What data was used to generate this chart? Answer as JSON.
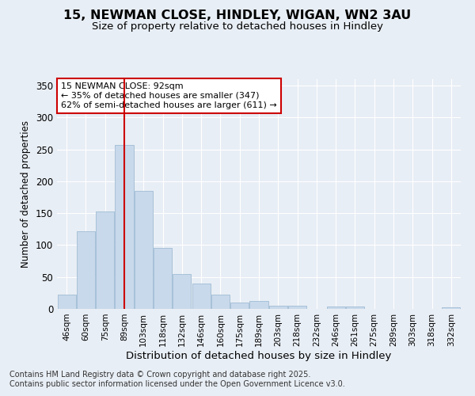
{
  "title_line1": "15, NEWMAN CLOSE, HINDLEY, WIGAN, WN2 3AU",
  "title_line2": "Size of property relative to detached houses in Hindley",
  "xlabel": "Distribution of detached houses by size in Hindley",
  "ylabel": "Number of detached properties",
  "bar_labels": [
    "46sqm",
    "60sqm",
    "75sqm",
    "89sqm",
    "103sqm",
    "118sqm",
    "132sqm",
    "146sqm",
    "160sqm",
    "175sqm",
    "189sqm",
    "203sqm",
    "218sqm",
    "232sqm",
    "246sqm",
    "261sqm",
    "275sqm",
    "289sqm",
    "303sqm",
    "318sqm",
    "332sqm"
  ],
  "bar_values": [
    22,
    122,
    153,
    257,
    185,
    95,
    55,
    40,
    22,
    10,
    12,
    5,
    5,
    0,
    4,
    4,
    0,
    0,
    0,
    0,
    2
  ],
  "bar_color": "#c8d9eb",
  "bar_edge_color": "#a0bcd4",
  "vline_x_index": 3,
  "vline_color": "#cc0000",
  "ylim": [
    0,
    360
  ],
  "yticks": [
    0,
    50,
    100,
    150,
    200,
    250,
    300,
    350
  ],
  "annotation_text": "15 NEWMAN CLOSE: 92sqm\n← 35% of detached houses are smaller (347)\n62% of semi-detached houses are larger (611) →",
  "annotation_box_color": "#cc0000",
  "bg_color": "#e8eef5",
  "footnote": "Contains HM Land Registry data © Crown copyright and database right 2025.\nContains public sector information licensed under the Open Government Licence v3.0.",
  "title_fontsize": 11.5,
  "subtitle_fontsize": 9.5,
  "annotation_fontsize": 8,
  "footnote_fontsize": 7,
  "xlabel_fontsize": 9.5,
  "ylabel_fontsize": 8.5
}
